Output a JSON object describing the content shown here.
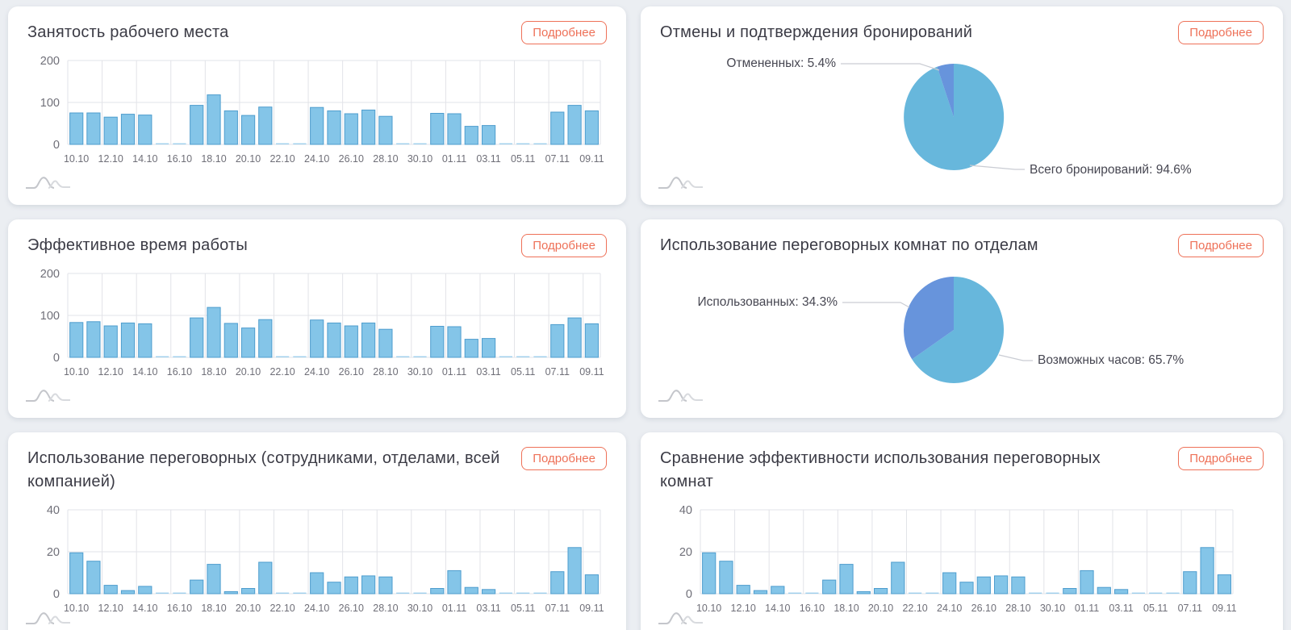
{
  "ui": {
    "detail_button_label": "Подробнее"
  },
  "colors": {
    "accent": "#ee7158",
    "bar_fill": "#84c5e8",
    "bar_stroke": "#4e9dce",
    "pie_primary": "#67b7dc",
    "pie_secondary": "#6794dc",
    "grid": "#e2e3e8",
    "axis_text": "#6f6f78",
    "title_text": "#3b3b45"
  },
  "chart_data": [
    {
      "type": "bar",
      "title": "Занятость рабочего места",
      "categories": [
        "10.10",
        "11.10",
        "12.10",
        "13.10",
        "14.10",
        "15.10",
        "16.10",
        "17.10",
        "18.10",
        "19.10",
        "20.10",
        "21.10",
        "22.10",
        "23.10",
        "24.10",
        "25.10",
        "26.10",
        "27.10",
        "28.10",
        "29.10",
        "30.10",
        "31.10",
        "01.11",
        "02.11",
        "03.11",
        "04.11",
        "05.11",
        "06.11",
        "07.11",
        "08.11",
        "09.11"
      ],
      "x_tick_labels": [
        "10.10",
        "12.10",
        "14.10",
        "16.10",
        "18.10",
        "20.10",
        "22.10",
        "24.10",
        "26.10",
        "28.10",
        "30.10",
        "01.11",
        "03.11",
        "05.11",
        "07.11",
        "09.11"
      ],
      "values": [
        75,
        75,
        65,
        72,
        70,
        0,
        0,
        93,
        118,
        80,
        69,
        89,
        0,
        0,
        88,
        80,
        73,
        82,
        67,
        0,
        0,
        74,
        73,
        43,
        45,
        0,
        0,
        0,
        77,
        93,
        80
      ],
      "ylim": [
        0,
        200
      ],
      "yticks": [
        0,
        100,
        200
      ],
      "grid": true
    },
    {
      "type": "pie",
      "title": "Отмены и подтверждения бронирований",
      "slices": [
        {
          "label": "Всего бронирований",
          "pct": 94.6,
          "color": "#67b7dc"
        },
        {
          "label": "Отмененных",
          "pct": 5.4,
          "color": "#6794dc"
        }
      ],
      "callouts": [
        "Отмененных: 5.4%",
        "Всего бронирований: 94.6%"
      ]
    },
    {
      "type": "bar",
      "title": "Эффективное время работы",
      "categories": [
        "10.10",
        "11.10",
        "12.10",
        "13.10",
        "14.10",
        "15.10",
        "16.10",
        "17.10",
        "18.10",
        "19.10",
        "20.10",
        "21.10",
        "22.10",
        "23.10",
        "24.10",
        "25.10",
        "26.10",
        "27.10",
        "28.10",
        "29.10",
        "30.10",
        "31.10",
        "01.11",
        "02.11",
        "03.11",
        "04.11",
        "05.11",
        "06.11",
        "07.11",
        "08.11",
        "09.11"
      ],
      "x_tick_labels": [
        "10.10",
        "12.10",
        "14.10",
        "16.10",
        "18.10",
        "20.10",
        "22.10",
        "24.10",
        "26.10",
        "28.10",
        "30.10",
        "01.11",
        "03.11",
        "05.11",
        "07.11",
        "09.11"
      ],
      "values": [
        83,
        85,
        75,
        82,
        80,
        0,
        0,
        94,
        119,
        81,
        70,
        90,
        0,
        0,
        89,
        82,
        75,
        82,
        67,
        0,
        0,
        74,
        73,
        43,
        45,
        0,
        0,
        0,
        78,
        94,
        80
      ],
      "ylim": [
        0,
        200
      ],
      "yticks": [
        0,
        100,
        200
      ],
      "grid": true
    },
    {
      "type": "pie",
      "title": "Использование переговорных комнат по отделам",
      "slices": [
        {
          "label": "Возможных часов",
          "pct": 65.7,
          "color": "#67b7dc"
        },
        {
          "label": "Использованных",
          "pct": 34.3,
          "color": "#6794dc"
        }
      ],
      "callouts": [
        "Использованных: 34.3%",
        "Возможных часов: 65.7%"
      ]
    },
    {
      "type": "bar",
      "title": "Использование переговорных (сотрудниками, отделами, всей компанией)",
      "categories": [
        "10.10",
        "11.10",
        "12.10",
        "13.10",
        "14.10",
        "15.10",
        "16.10",
        "17.10",
        "18.10",
        "19.10",
        "20.10",
        "21.10",
        "22.10",
        "23.10",
        "24.10",
        "25.10",
        "26.10",
        "27.10",
        "28.10",
        "29.10",
        "30.10",
        "31.10",
        "01.11",
        "02.11",
        "03.11",
        "04.11",
        "05.11",
        "06.11",
        "07.11",
        "08.11",
        "09.11"
      ],
      "x_tick_labels": [
        "10.10",
        "12.10",
        "14.10",
        "16.10",
        "18.10",
        "20.10",
        "22.10",
        "24.10",
        "26.10",
        "28.10",
        "30.10",
        "01.11",
        "03.11",
        "05.11",
        "07.11",
        "09.11"
      ],
      "values": [
        19.5,
        15.5,
        4,
        1.5,
        3.5,
        0,
        0,
        6.5,
        14,
        1,
        2.5,
        15,
        0,
        0,
        10,
        5.5,
        8,
        8.5,
        8,
        0,
        0,
        2.5,
        11,
        3,
        2,
        0,
        0,
        0,
        10.5,
        22,
        9
      ],
      "ylim": [
        0,
        40
      ],
      "yticks": [
        0,
        20,
        40
      ],
      "grid": true
    },
    {
      "type": "bar",
      "title": "Сравнение эффективности использования переговорных комнат",
      "categories": [
        "10.10",
        "11.10",
        "12.10",
        "13.10",
        "14.10",
        "15.10",
        "16.10",
        "17.10",
        "18.10",
        "19.10",
        "20.10",
        "21.10",
        "22.10",
        "23.10",
        "24.10",
        "25.10",
        "26.10",
        "27.10",
        "28.10",
        "29.10",
        "30.10",
        "31.10",
        "01.11",
        "02.11",
        "03.11",
        "04.11",
        "05.11",
        "06.11",
        "07.11",
        "08.11",
        "09.11"
      ],
      "x_tick_labels": [
        "10.10",
        "12.10",
        "14.10",
        "16.10",
        "18.10",
        "20.10",
        "22.10",
        "24.10",
        "26.10",
        "28.10",
        "30.10",
        "01.11",
        "03.11",
        "05.11",
        "07.11",
        "09.11"
      ],
      "values": [
        19.5,
        15.5,
        4,
        1.5,
        3.5,
        0,
        0,
        6.5,
        14,
        1,
        2.5,
        15,
        0,
        0,
        10,
        5.5,
        8,
        8.5,
        8,
        0,
        0,
        2.5,
        11,
        3,
        2,
        0,
        0,
        0,
        10.5,
        22,
        9
      ],
      "ylim": [
        0,
        40
      ],
      "yticks": [
        0,
        20,
        40
      ],
      "grid": true
    }
  ]
}
